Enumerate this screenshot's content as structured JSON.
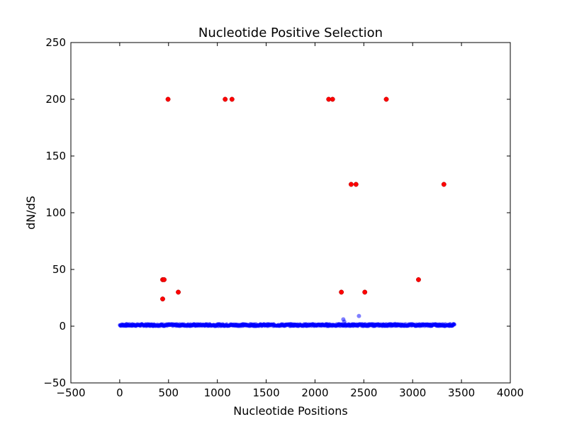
{
  "chart_data": {
    "type": "scatter",
    "title": "Nucleotide Positive Selection",
    "xlabel": "Nucleotide Positions",
    "ylabel": "dN/dS",
    "xlim": [
      -500,
      4000
    ],
    "ylim": [
      -50,
      250
    ],
    "xticks": [
      -500,
      0,
      500,
      1000,
      1500,
      2000,
      2500,
      3000,
      3500,
      4000
    ],
    "yticks": [
      -50,
      0,
      50,
      100,
      150,
      200,
      250
    ],
    "xtick_labels": [
      "−500",
      "0",
      "500",
      "1000",
      "1500",
      "2000",
      "2500",
      "3000",
      "3500",
      "4000"
    ],
    "ytick_labels": [
      "−50",
      "0",
      "50",
      "100",
      "150",
      "200",
      "250"
    ],
    "grid": false,
    "series": [
      {
        "color": "#0000ff",
        "alpha": 0.5,
        "marker": "circle",
        "x_range": [
          0,
          3430
        ],
        "y_base_range": [
          0,
          2
        ],
        "points": [
          {
            "x": 2290,
            "y": 6
          },
          {
            "x": 2300,
            "y": 4
          },
          {
            "x": 2450,
            "y": 9
          },
          {
            "x": 2820,
            "y": 2
          }
        ]
      },
      {
        "color": "#ff0000",
        "marker": "circle",
        "points": [
          {
            "x": 440,
            "y": 41
          },
          {
            "x": 455,
            "y": 41
          },
          {
            "x": 440,
            "y": 24
          },
          {
            "x": 495,
            "y": 200
          },
          {
            "x": 600,
            "y": 30
          },
          {
            "x": 1080,
            "y": 200
          },
          {
            "x": 1150,
            "y": 200
          },
          {
            "x": 2140,
            "y": 200
          },
          {
            "x": 2180,
            "y": 200
          },
          {
            "x": 2270,
            "y": 30
          },
          {
            "x": 2370,
            "y": 125
          },
          {
            "x": 2420,
            "y": 125
          },
          {
            "x": 2510,
            "y": 30
          },
          {
            "x": 2730,
            "y": 200
          },
          {
            "x": 3060,
            "y": 41
          },
          {
            "x": 3320,
            "y": 125
          }
        ]
      }
    ]
  }
}
